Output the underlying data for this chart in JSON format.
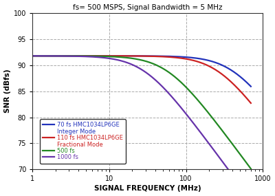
{
  "title": "fs= 500 MSPS, Signal Bandwidth = 5 MHz",
  "xlabel": "SIGNAL FREQUENCY (MHz)",
  "ylabel": "SNR (dBfs)",
  "xlim": [
    1,
    1000
  ],
  "ylim": [
    70,
    100
  ],
  "yticks": [
    70,
    75,
    80,
    85,
    90,
    95,
    100
  ],
  "background_color": "#ffffff",
  "grid_color": "#aaaaaa",
  "curves": [
    {
      "label_line1": "70 fs HMC1034LP6GE",
      "label_line2": "Integer Mode",
      "color": "#2233bb",
      "jitter_fs": 70,
      "snr_floor": 91.8
    },
    {
      "label_line1": "110 fs HMC1034LP6GE",
      "label_line2": "Fractional Mode",
      "color": "#cc2222",
      "jitter_fs": 110,
      "snr_floor": 91.8
    },
    {
      "label_line1": "500 fs",
      "label_line2": "",
      "color": "#228822",
      "jitter_fs": 500,
      "snr_floor": 91.8
    },
    {
      "label_line1": "1000 fs",
      "label_line2": "",
      "color": "#6633aa",
      "jitter_fs": 1000,
      "snr_floor": 91.8
    }
  ],
  "fs_msps": 500,
  "bw_mhz": 5
}
